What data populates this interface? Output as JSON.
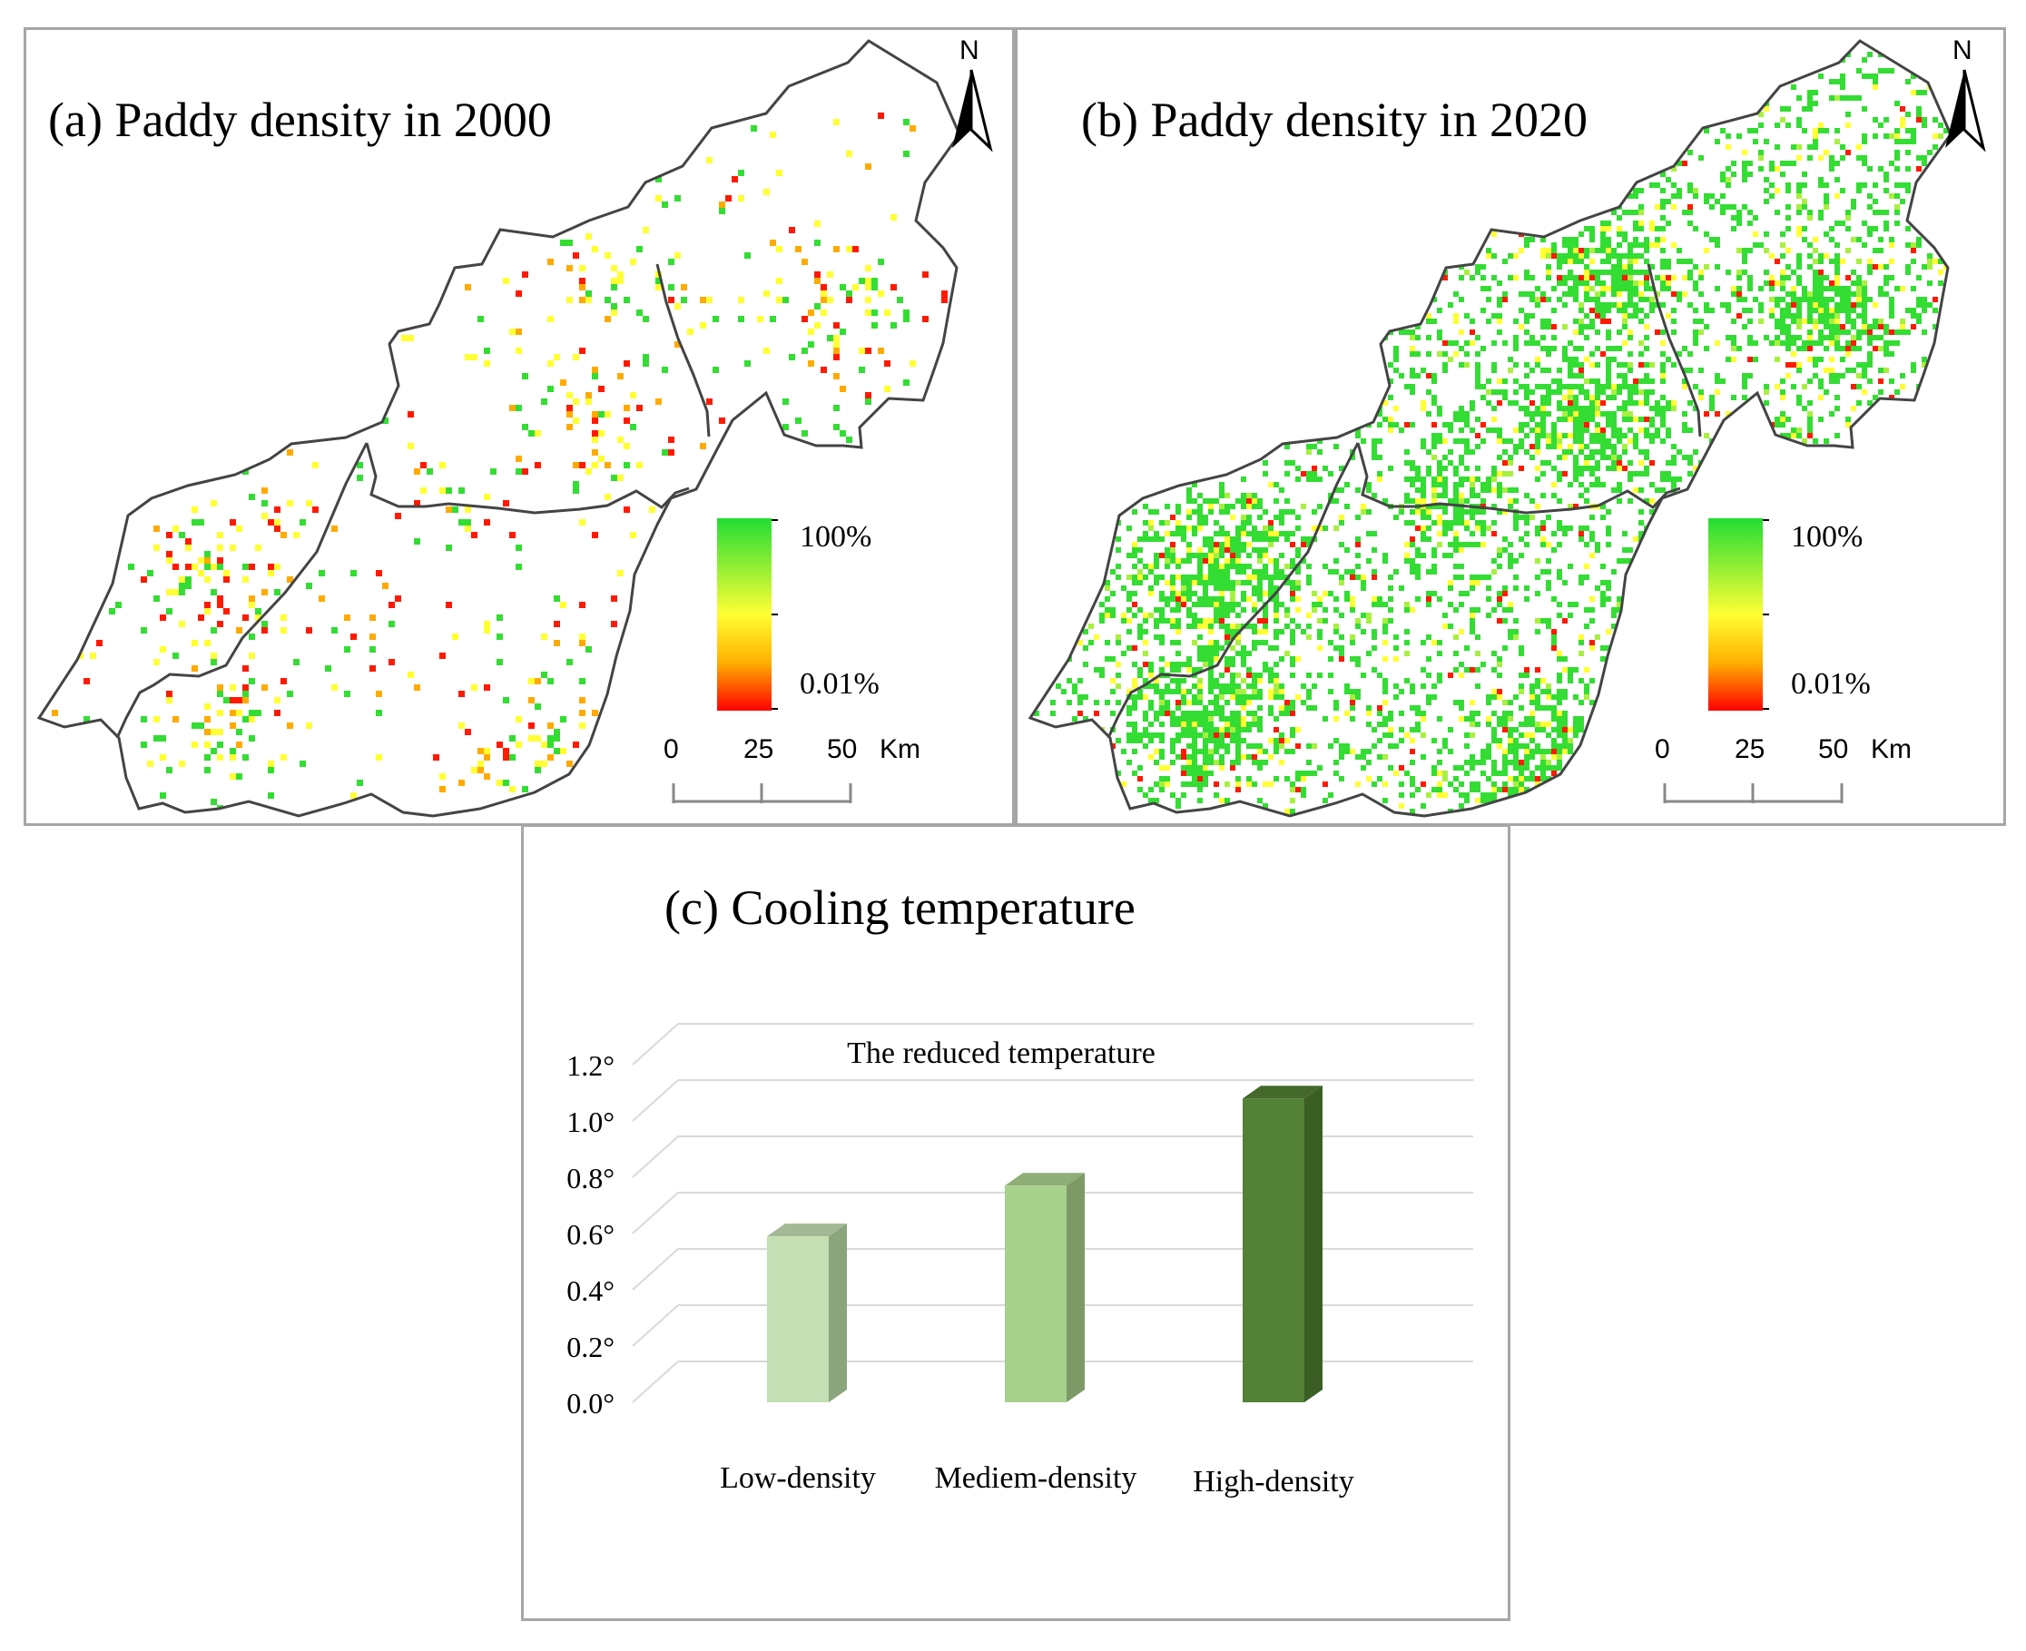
{
  "panels": [
    {
      "id": "a",
      "title": "(a) Paddy density in 2000",
      "north": "N",
      "legend": {
        "max": "100%",
        "min": "0.01%"
      },
      "scale": {
        "ticks": [
          "0",
          "25",
          "50"
        ],
        "unit": "Km"
      },
      "density": 0.09
    },
    {
      "id": "b",
      "title": "(b) Paddy density in 2020",
      "north": "N",
      "legend": {
        "max": "100%",
        "min": "0.01%"
      },
      "scale": {
        "ticks": [
          "0",
          "25",
          "50"
        ],
        "unit": "Km"
      },
      "density": 0.62
    }
  ],
  "colors": {
    "high": "#33dd33",
    "mid": "#ffff33",
    "low": "#ff1a00",
    "boundary": "#444444",
    "bar_low": "#c5dfb4",
    "bar_mid": "#a8d08d",
    "bar_high": "#538135"
  },
  "chart_panel": {
    "title": "(c) Cooling temperature"
  },
  "chart_data": {
    "type": "bar",
    "title": "The reduced temperature",
    "categories": [
      "Low-density",
      "Mediem-density",
      "High-density"
    ],
    "values": [
      0.59,
      0.77,
      1.08
    ],
    "yticks": [
      "0.0°",
      "0.2°",
      "0.4°",
      "0.6°",
      "0.8°",
      "1.0°",
      "1.2°"
    ],
    "ylim": [
      0,
      1.2
    ]
  }
}
